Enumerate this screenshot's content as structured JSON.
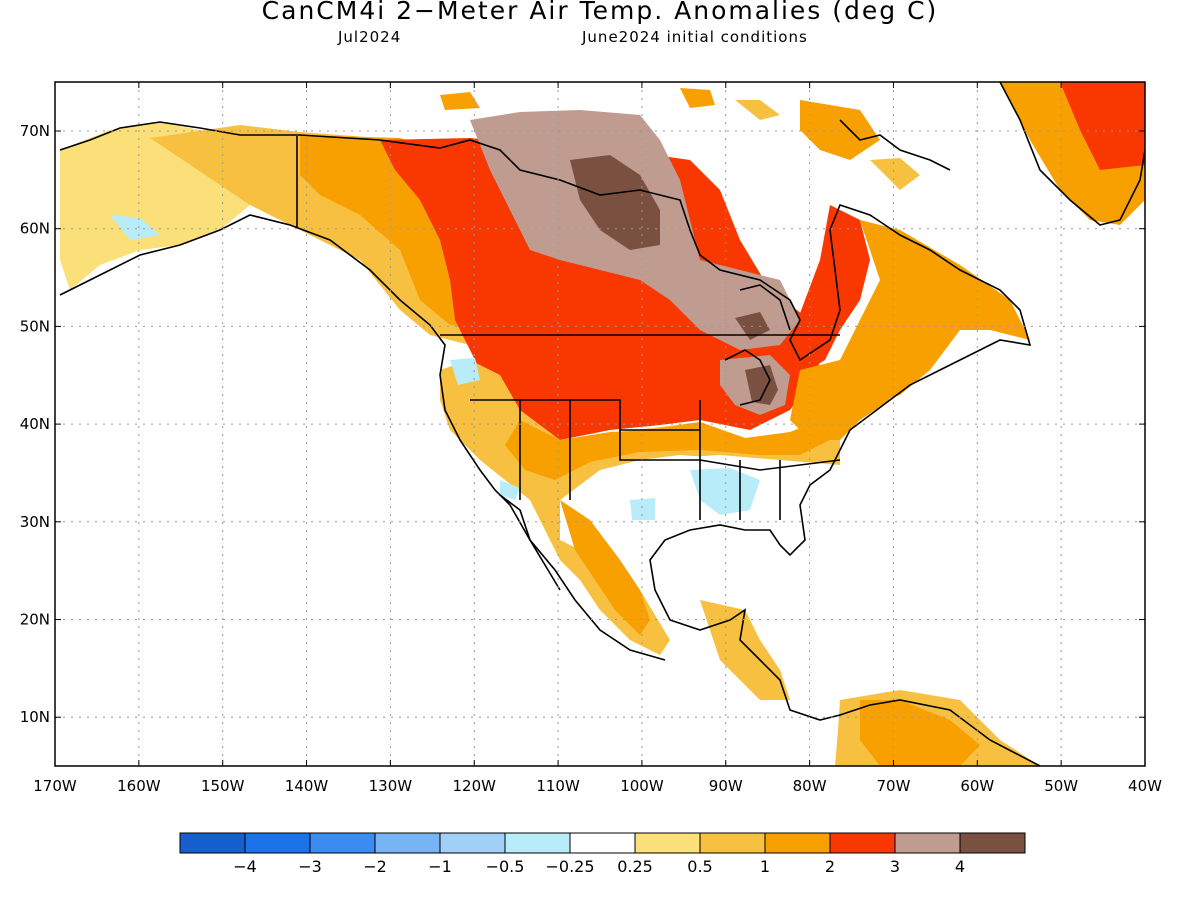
{
  "title": "CanCM4i 2−Meter Air Temp. Anomalies (deg C)",
  "subtitle_left": "Jul2024",
  "subtitle_right": "June2024 initial conditions",
  "lat_labels": [
    "70N",
    "60N",
    "50N",
    "40N",
    "30N",
    "20N",
    "10N"
  ],
  "lon_labels": [
    "170W",
    "160W",
    "150W",
    "140W",
    "130W",
    "120W",
    "110W",
    "100W",
    "90W",
    "80W",
    "70W",
    "60W",
    "50W",
    "40W"
  ],
  "colorbar": {
    "colors": [
      "#1560cc",
      "#1c72e8",
      "#3a8cf0",
      "#76b4f4",
      "#a0d0f8",
      "#b8ecf8",
      "#ffffff",
      "#fbe07a",
      "#f8c040",
      "#f8a000",
      "#f83800",
      "#c09c90",
      "#7a5040"
    ],
    "labels": [
      "−4",
      "−3",
      "−2",
      "−1",
      "−0.5",
      "−0.25",
      "0.25",
      "0.5",
      "1",
      "2",
      "3",
      "4"
    ]
  }
}
